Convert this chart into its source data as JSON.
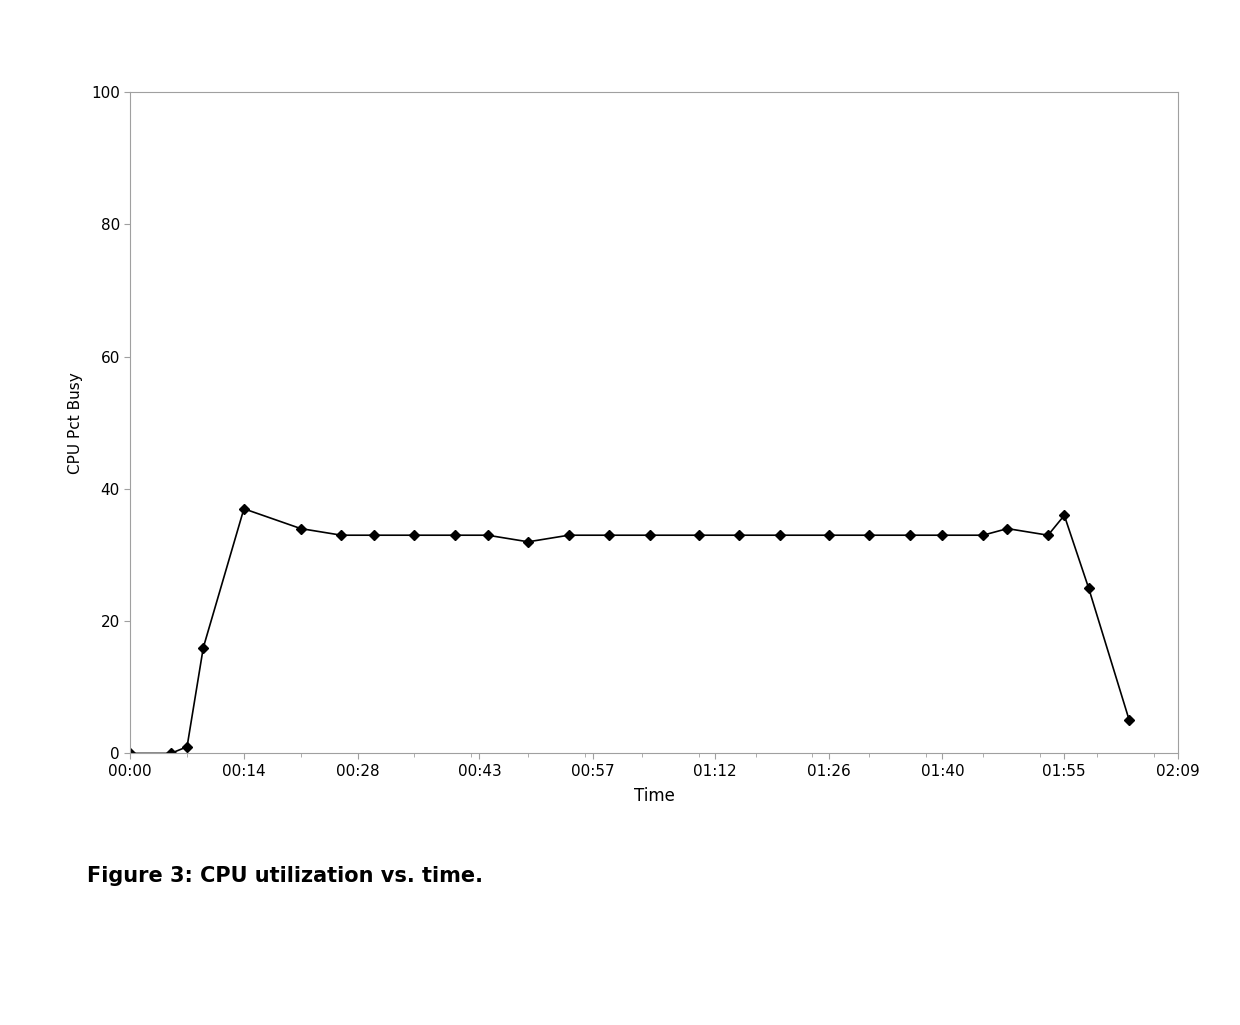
{
  "xlabel": "Time",
  "ylabel": "CPU Pct Busy",
  "ylim": [
    0,
    100
  ],
  "xlim": [
    0,
    129
  ],
  "yticks": [
    0,
    20,
    40,
    60,
    80,
    100
  ],
  "xtick_labels": [
    "00:00",
    "00:14",
    "00:28",
    "00:43",
    "00:57",
    "01:12",
    "01:26",
    "01:40",
    "01:55",
    "02:09"
  ],
  "xtick_positions": [
    0,
    14,
    28,
    43,
    57,
    72,
    86,
    100,
    115,
    129
  ],
  "x": [
    0,
    5,
    7,
    9,
    14,
    21,
    26,
    30,
    35,
    40,
    44,
    49,
    54,
    59,
    64,
    70,
    75,
    80,
    86,
    91,
    96,
    100,
    105,
    108,
    113,
    115,
    118,
    123
  ],
  "y": [
    0,
    0,
    1,
    16,
    37,
    34,
    33,
    33,
    33,
    33,
    33,
    32,
    33,
    33,
    33,
    33,
    33,
    33,
    33,
    33,
    33,
    33,
    33,
    34,
    33,
    36,
    25,
    5
  ],
  "line_color": "#000000",
  "marker": "D",
  "marker_size": 5,
  "background_color": "#ffffff",
  "fig_caption": "Figure 3: CPU utilization vs. time.",
  "caption_fontsize": 15,
  "caption_bold": true
}
